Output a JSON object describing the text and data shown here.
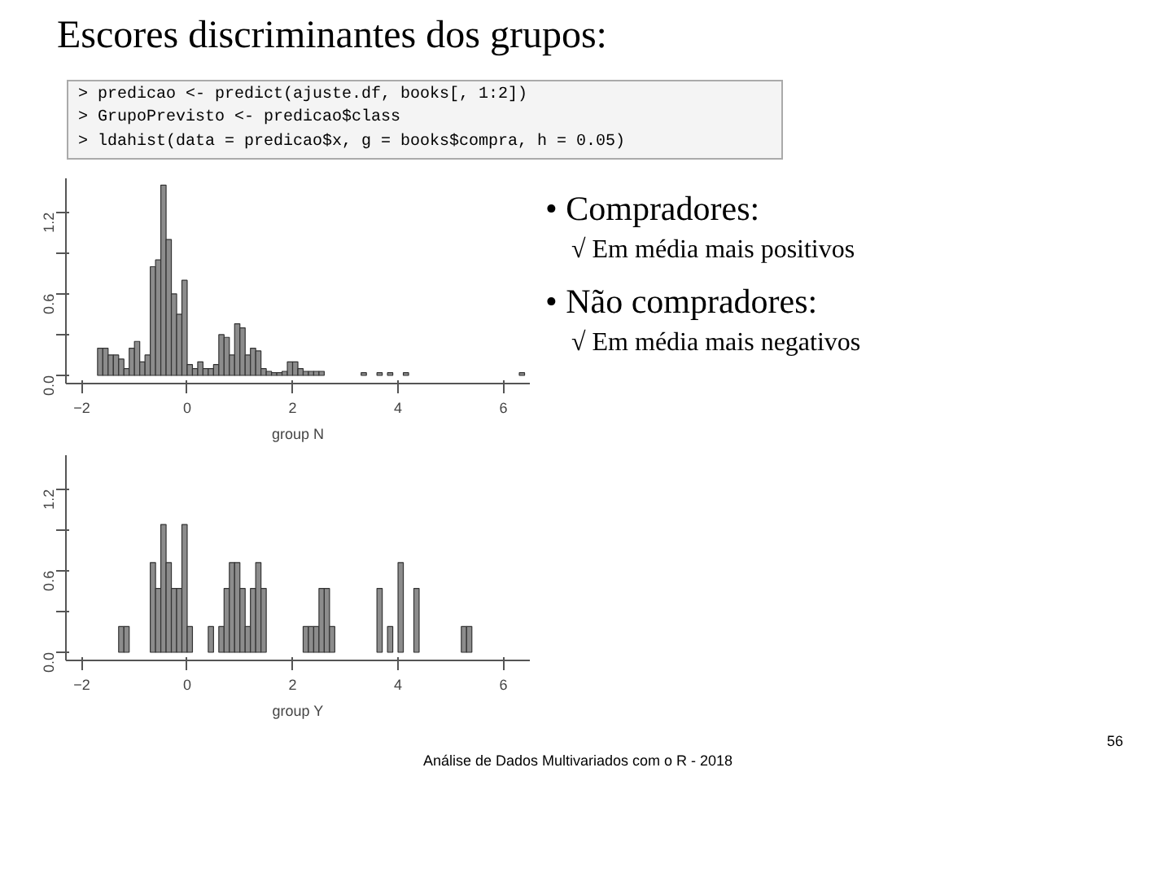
{
  "chart_data": [
    {
      "type": "other",
      "title": "Escores discriminantes dos grupos:",
      "annotations": [
        "> predicao <- predict(ajuste.df, books[, 1:2])",
        "> GrupoPrevisto <- predicao$class",
        "> ldahist(data = predicao$x, g = books$compra, h = 0.05)"
      ]
    },
    {
      "type": "histogram",
      "xlabel": "group N",
      "color": "#8c8c8c",
      "bins": [
        -1.8,
        -1.7,
        -1.6,
        -1.5,
        -1.4,
        -1.3,
        -1.2,
        -1.1,
        -1.0,
        -0.9,
        -0.8,
        -0.7,
        -0.6,
        -0.5,
        -0.4,
        -0.3,
        -0.2,
        -0.1,
        0.0,
        0.1,
        0.2,
        0.3,
        0.4,
        0.5,
        0.6,
        0.7,
        0.8,
        0.9,
        1.0,
        1.1,
        1.2,
        1.3,
        1.4,
        1.5,
        1.6,
        1.7,
        1.8,
        1.9,
        2.0,
        2.1,
        2.2,
        2.3,
        2.4,
        2.5,
        2.6,
        2.7,
        2.8,
        2.9,
        3.0,
        3.1,
        3.2,
        3.3,
        3.4,
        3.5,
        3.6,
        3.7,
        3.8,
        3.9,
        4.0,
        4.1,
        4.2,
        4.3,
        4.4,
        4.5,
        4.6,
        4.7,
        4.8,
        4.9,
        5.0,
        5.1,
        5.2,
        5.3,
        5.4,
        5.5,
        5.6,
        5.7,
        5.8,
        5.9,
        6.0,
        6.1,
        6.2,
        6.3,
        6.4
      ],
      "values": [
        0,
        0.2,
        0.2,
        0.15,
        0.15,
        0.12,
        0.05,
        0.2,
        0.25,
        0.1,
        0.15,
        0.8,
        0.85,
        1.4,
        1.0,
        0.6,
        0.45,
        0.7,
        0.08,
        0.05,
        0.1,
        0.05,
        0.05,
        0.08,
        0.3,
        0.28,
        0.15,
        0.38,
        0.35,
        0.15,
        0.2,
        0.18,
        0.05,
        0.03,
        0.02,
        0.02,
        0.03,
        0.1,
        0.1,
        0.05,
        0.03,
        0.03,
        0.03,
        0.03,
        0,
        0,
        0,
        0,
        0,
        0,
        0,
        0.02,
        0,
        0,
        0.02,
        0,
        0.02,
        0,
        0,
        0.02,
        0,
        0,
        0,
        0,
        0,
        0,
        0,
        0,
        0,
        0,
        0,
        0,
        0,
        0,
        0,
        0,
        0,
        0,
        0,
        0,
        0,
        0.02
      ],
      "xlim": [
        -2.3,
        6.5
      ],
      "ylim": [
        -0.06,
        1.45
      ],
      "xticks": [
        -2,
        0,
        2,
        4,
        6
      ],
      "yticks": [
        {
          "value": 0,
          "label": "0.0"
        },
        {
          "value": 0.3,
          "label": null
        },
        {
          "value": 0.6,
          "label": "0.6"
        },
        {
          "value": 0.9,
          "label": null
        },
        {
          "value": 1.2,
          "label": "1.2"
        }
      ],
      "grid": false
    },
    {
      "type": "histogram",
      "xlabel": "group Y",
      "color": "#8c8c8c",
      "bins": [
        -1.8,
        -1.7,
        -1.6,
        -1.5,
        -1.4,
        -1.3,
        -1.2,
        -1.1,
        -1.0,
        -0.9,
        -0.8,
        -0.7,
        -0.6,
        -0.5,
        -0.4,
        -0.3,
        -0.2,
        -0.1,
        0.0,
        0.1,
        0.2,
        0.3,
        0.4,
        0.5,
        0.6,
        0.7,
        0.8,
        0.9,
        1.0,
        1.1,
        1.2,
        1.3,
        1.4,
        1.5,
        1.6,
        1.7,
        1.8,
        1.9,
        2.0,
        2.1,
        2.2,
        2.3,
        2.4,
        2.5,
        2.6,
        2.7,
        2.8,
        2.9,
        3.0,
        3.1,
        3.2,
        3.3,
        3.4,
        3.5,
        3.6,
        3.7,
        3.8,
        3.9,
        4.0,
        4.1,
        4.2,
        4.3,
        4.4,
        4.5,
        4.6,
        4.7,
        4.8,
        4.9,
        5.0,
        5.1,
        5.2,
        5.3,
        5.4,
        5.5,
        5.6,
        5.7,
        5.8,
        5.9,
        6.0,
        6.1,
        6.2,
        6.3,
        6.4
      ],
      "values": [
        0,
        0,
        0,
        0,
        0,
        0.19,
        0.19,
        0,
        0,
        0,
        0,
        0.66,
        0.47,
        0.94,
        0.66,
        0.47,
        0.47,
        0.94,
        0.19,
        0,
        0,
        0,
        0.19,
        0,
        0.19,
        0.47,
        0.66,
        0.66,
        0.47,
        0.19,
        0.47,
        0.66,
        0.47,
        0,
        0,
        0,
        0,
        0,
        0,
        0,
        0.19,
        0.19,
        0.19,
        0.47,
        0.47,
        0.19,
        0,
        0,
        0,
        0,
        0,
        0,
        0,
        0,
        0.47,
        0,
        0.19,
        0,
        0.66,
        0,
        0,
        0.47,
        0,
        0,
        0,
        0,
        0,
        0,
        0,
        0,
        0.19,
        0.19,
        0,
        0,
        0,
        0,
        0,
        0,
        0,
        0,
        0,
        0
      ],
      "xlim": [
        -2.3,
        6.5
      ],
      "ylim": [
        -0.06,
        1.45
      ],
      "xticks": [
        -2,
        0,
        2,
        4,
        6
      ],
      "yticks": [
        {
          "value": 0,
          "label": "0.0"
        },
        {
          "value": 0.3,
          "label": null
        },
        {
          "value": 0.6,
          "label": "0.6"
        },
        {
          "value": 0.9,
          "label": null
        },
        {
          "value": 1.2,
          "label": "1.2"
        }
      ],
      "grid": false
    },
    {
      "type": "other",
      "annotations": [
        "• Compradores:",
        "√ Em média mais positivos",
        "• Não compradores:",
        "√ Em média mais negativos"
      ]
    },
    {
      "type": "other",
      "annotations": [
        "Análise de Dados Multivariados com o R - 2018",
        "56"
      ]
    }
  ]
}
